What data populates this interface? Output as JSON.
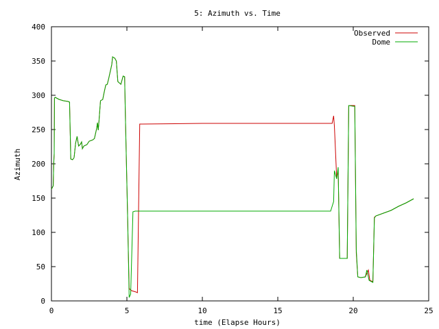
{
  "chart_data": {
    "type": "line",
    "title": "5: Azimuth vs. Time",
    "xlabel": "time (Elapse Hours)",
    "ylabel": "Azimuth",
    "xlim": [
      0,
      25
    ],
    "ylim": [
      0,
      400
    ],
    "xticks": [
      "0",
      "5",
      "10",
      "15",
      "20",
      "25"
    ],
    "yticks": [
      "0",
      "50",
      "100",
      "150",
      "200",
      "250",
      "300",
      "350",
      "400"
    ],
    "grid": false,
    "legend_position": "top-right",
    "series": [
      {
        "name": "Observed",
        "color": "#cc0000",
        "points": [
          [
            0,
            163
          ],
          [
            0.05,
            165
          ],
          [
            0.12,
            168
          ],
          [
            0.15,
            200
          ],
          [
            0.18,
            215
          ],
          [
            0.2,
            296
          ],
          [
            0.25,
            297
          ],
          [
            0.5,
            294
          ],
          [
            0.8,
            292
          ],
          [
            1.1,
            291
          ],
          [
            1.2,
            290
          ],
          [
            1.28,
            207
          ],
          [
            1.4,
            206
          ],
          [
            1.5,
            209
          ],
          [
            1.6,
            230
          ],
          [
            1.7,
            240
          ],
          [
            1.8,
            226
          ],
          [
            1.9,
            228
          ],
          [
            2.0,
            232
          ],
          [
            2.05,
            222
          ],
          [
            2.15,
            226
          ],
          [
            2.35,
            228
          ],
          [
            2.5,
            233
          ],
          [
            2.75,
            235
          ],
          [
            2.85,
            237
          ],
          [
            3.0,
            252
          ],
          [
            3.05,
            260
          ],
          [
            3.1,
            249
          ],
          [
            3.15,
            262
          ],
          [
            3.25,
            292
          ],
          [
            3.4,
            294
          ],
          [
            3.5,
            305
          ],
          [
            3.6,
            315
          ],
          [
            3.7,
            316
          ],
          [
            3.8,
            325
          ],
          [
            3.9,
            335
          ],
          [
            4.0,
            345
          ],
          [
            4.05,
            356
          ],
          [
            4.2,
            354
          ],
          [
            4.3,
            350
          ],
          [
            4.4,
            320
          ],
          [
            4.5,
            318
          ],
          [
            4.6,
            316
          ],
          [
            4.75,
            328
          ],
          [
            4.85,
            327
          ],
          [
            4.9,
            270
          ],
          [
            5.05,
            120
          ],
          [
            5.08,
            85
          ],
          [
            5.15,
            18
          ],
          [
            5.3,
            15
          ],
          [
            5.6,
            13
          ],
          [
            5.7,
            12
          ],
          [
            5.85,
            258
          ],
          [
            6.0,
            258
          ],
          [
            10.0,
            259
          ],
          [
            18.6,
            259
          ],
          [
            18.7,
            270
          ],
          [
            18.75,
            255
          ],
          [
            18.9,
            180
          ],
          [
            19.0,
            190
          ],
          [
            19.1,
            62
          ],
          [
            19.6,
            62
          ],
          [
            19.7,
            285
          ],
          [
            20.0,
            285
          ],
          [
            20.1,
            285
          ],
          [
            20.2,
            70
          ],
          [
            20.3,
            35
          ],
          [
            20.5,
            34
          ],
          [
            20.8,
            35
          ],
          [
            21.0,
            45
          ],
          [
            21.1,
            30
          ],
          [
            21.3,
            28
          ],
          [
            21.4,
            122
          ],
          [
            21.5,
            124
          ],
          [
            22.0,
            128
          ],
          [
            22.5,
            132
          ],
          [
            23.0,
            138
          ],
          [
            23.5,
            143
          ],
          [
            24.0,
            149
          ]
        ]
      },
      {
        "name": "Dome",
        "color": "#00aa00",
        "points": [
          [
            0,
            163
          ],
          [
            0.05,
            165
          ],
          [
            0.12,
            168
          ],
          [
            0.15,
            200
          ],
          [
            0.18,
            215
          ],
          [
            0.2,
            296
          ],
          [
            0.25,
            297
          ],
          [
            0.5,
            294
          ],
          [
            0.8,
            292
          ],
          [
            1.1,
            291
          ],
          [
            1.2,
            290
          ],
          [
            1.28,
            207
          ],
          [
            1.4,
            206
          ],
          [
            1.5,
            209
          ],
          [
            1.6,
            230
          ],
          [
            1.7,
            240
          ],
          [
            1.8,
            226
          ],
          [
            1.9,
            228
          ],
          [
            2.0,
            232
          ],
          [
            2.05,
            222
          ],
          [
            2.15,
            226
          ],
          [
            2.35,
            228
          ],
          [
            2.5,
            233
          ],
          [
            2.75,
            235
          ],
          [
            2.85,
            237
          ],
          [
            3.0,
            252
          ],
          [
            3.05,
            260
          ],
          [
            3.1,
            249
          ],
          [
            3.15,
            262
          ],
          [
            3.25,
            292
          ],
          [
            3.4,
            294
          ],
          [
            3.5,
            305
          ],
          [
            3.6,
            315
          ],
          [
            3.7,
            316
          ],
          [
            3.8,
            325
          ],
          [
            3.9,
            335
          ],
          [
            4.0,
            345
          ],
          [
            4.05,
            356
          ],
          [
            4.2,
            354
          ],
          [
            4.3,
            350
          ],
          [
            4.4,
            320
          ],
          [
            4.5,
            318
          ],
          [
            4.6,
            316
          ],
          [
            4.75,
            328
          ],
          [
            4.85,
            327
          ],
          [
            4.9,
            270
          ],
          [
            5.05,
            120
          ],
          [
            5.08,
            85
          ],
          [
            5.15,
            5
          ],
          [
            5.25,
            10
          ],
          [
            5.4,
            130
          ],
          [
            5.55,
            131
          ],
          [
            10.0,
            131
          ],
          [
            18.5,
            131
          ],
          [
            18.7,
            145
          ],
          [
            18.75,
            190
          ],
          [
            18.9,
            178
          ],
          [
            19.0,
            195
          ],
          [
            19.1,
            62
          ],
          [
            19.6,
            62
          ],
          [
            19.7,
            285
          ],
          [
            20.0,
            284
          ],
          [
            20.1,
            284
          ],
          [
            20.2,
            75
          ],
          [
            20.3,
            35
          ],
          [
            20.5,
            34
          ],
          [
            20.8,
            35
          ],
          [
            20.85,
            40
          ],
          [
            20.9,
            45
          ],
          [
            21.0,
            35
          ],
          [
            21.05,
            30
          ],
          [
            21.3,
            27
          ],
          [
            21.4,
            121
          ],
          [
            21.5,
            124
          ],
          [
            22.0,
            128
          ],
          [
            22.5,
            132
          ],
          [
            23.0,
            138
          ],
          [
            23.5,
            143
          ],
          [
            24.0,
            149
          ]
        ]
      }
    ]
  }
}
